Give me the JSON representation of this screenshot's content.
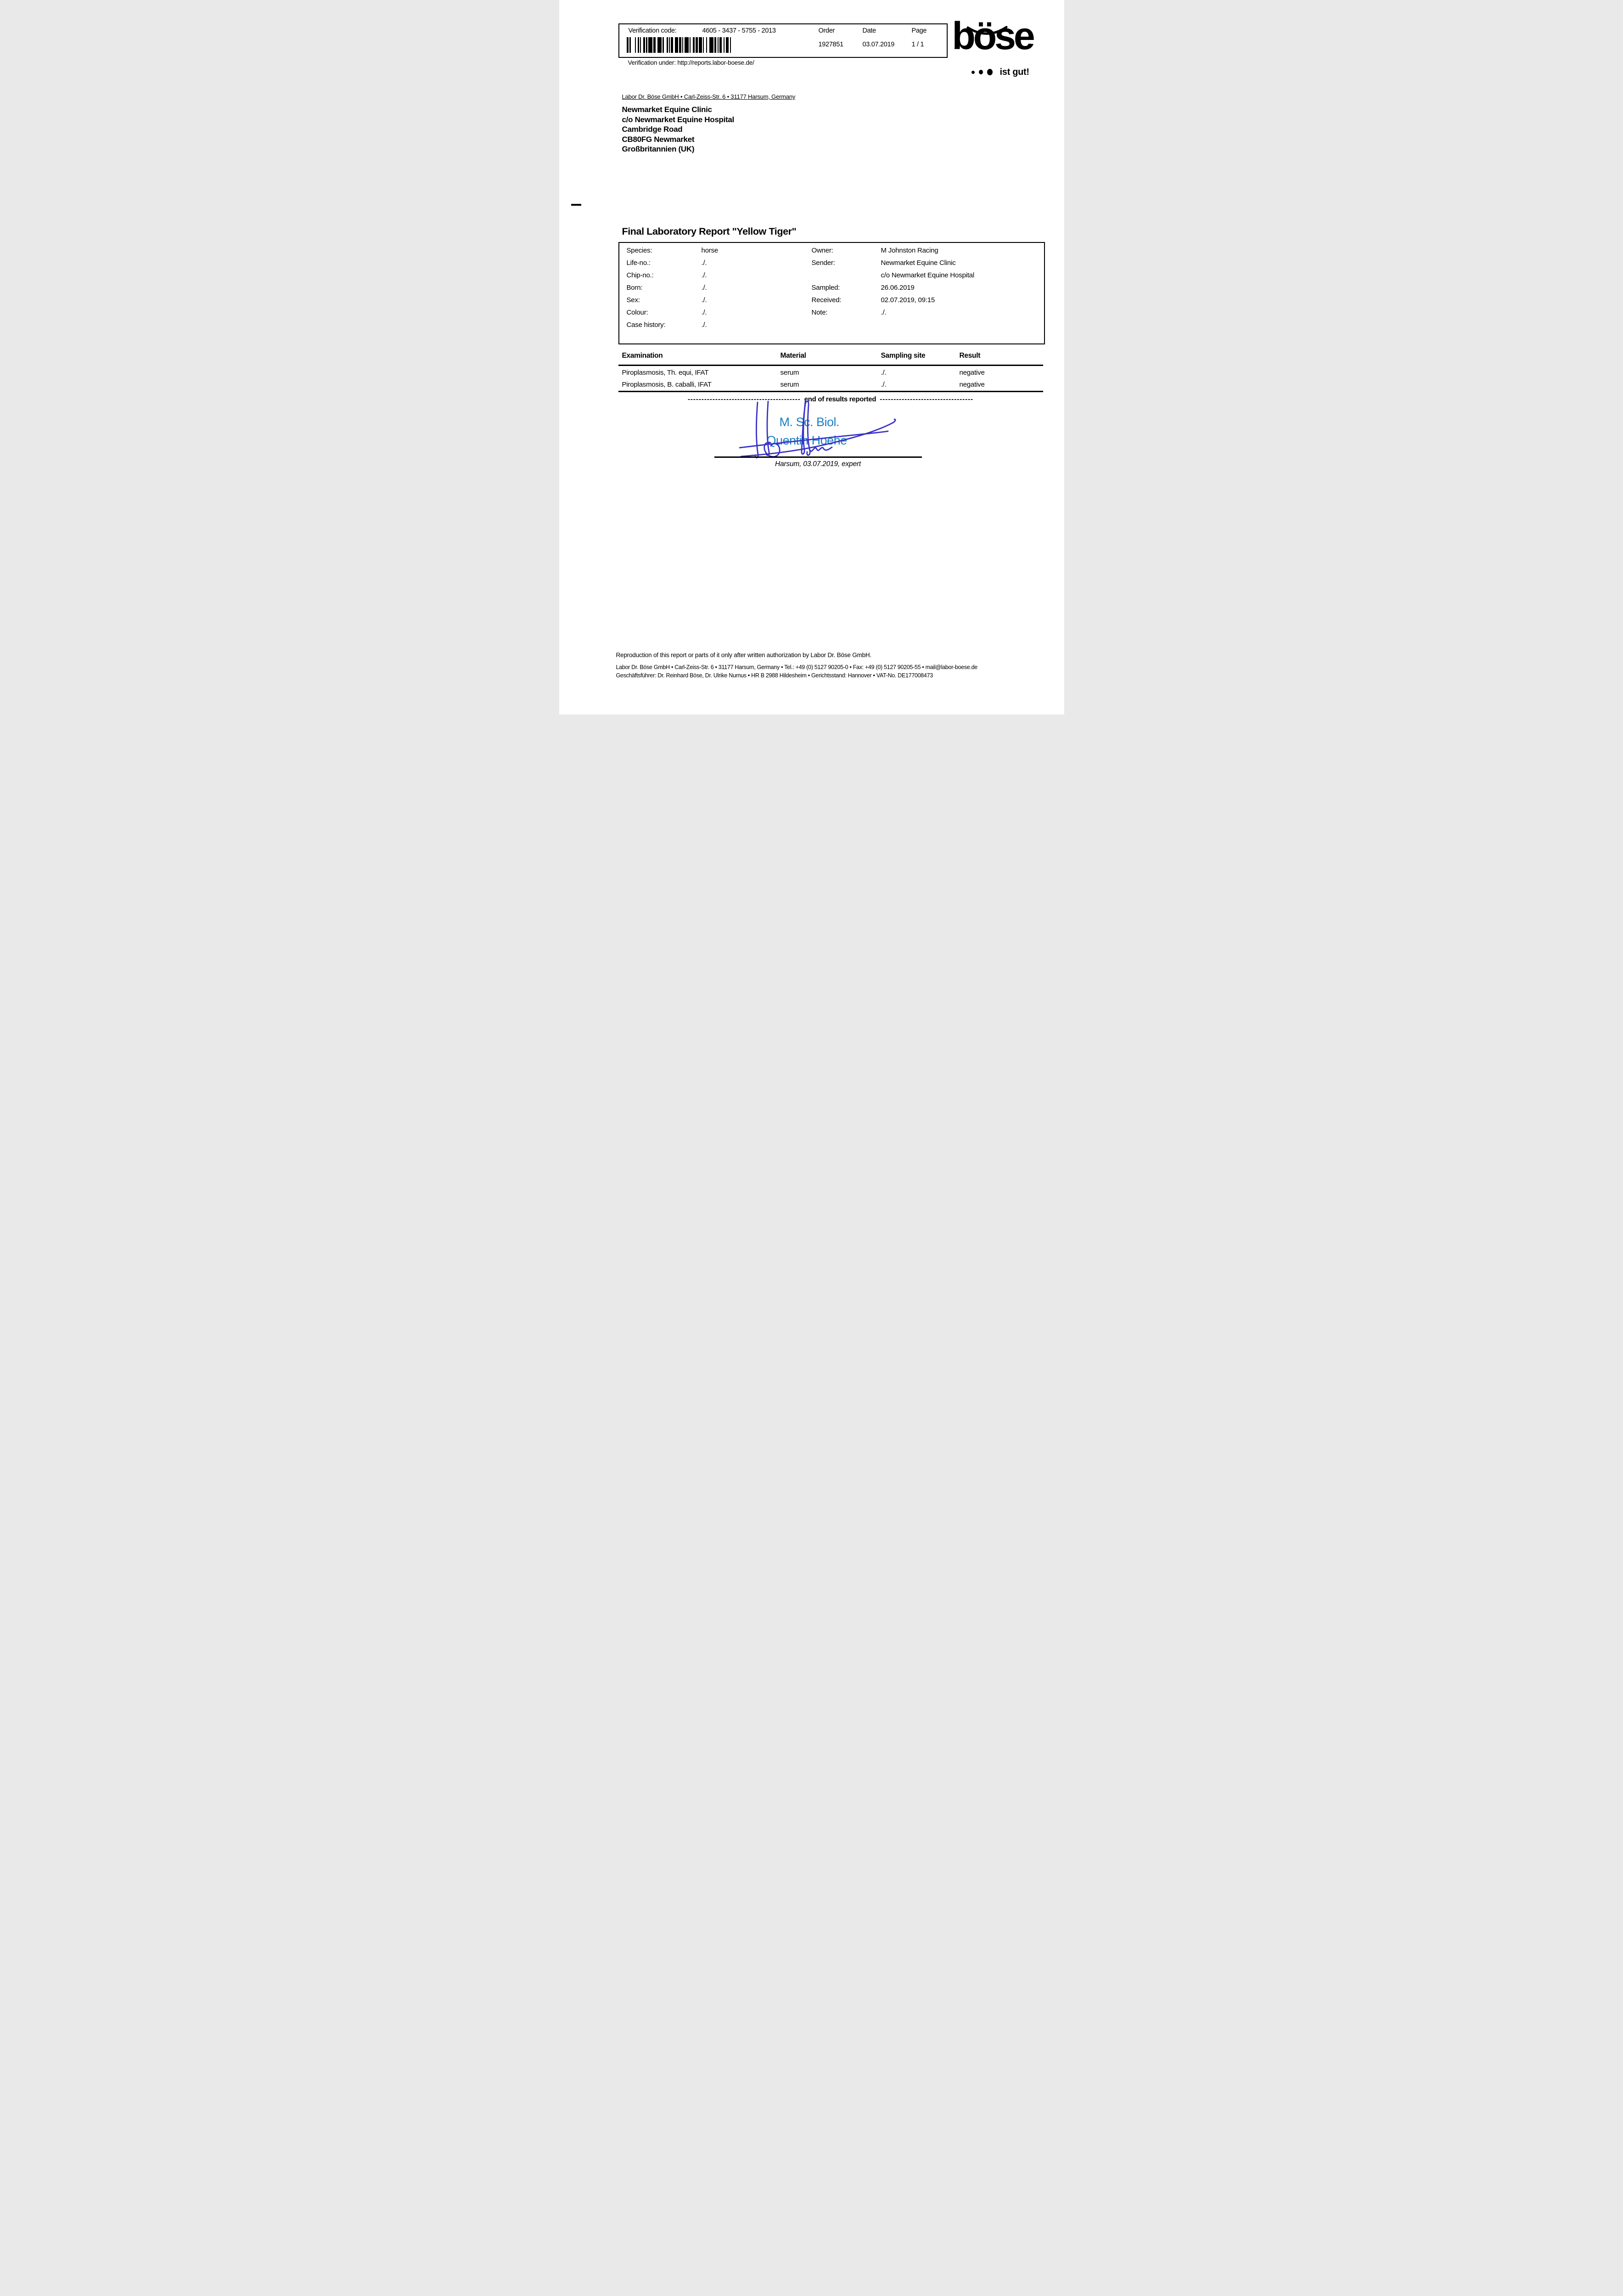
{
  "verification": {
    "code_label": "Verification code:",
    "code": "4605 - 3437 - 5755 - 2013",
    "order_label": "Order",
    "order_value": "1927851",
    "date_label": "Date",
    "date_value": "03.07.2019",
    "page_label": "Page",
    "page_value": "1 / 1",
    "under_line": "Verification under: http://reports.labor-boese.de/",
    "barcode_pattern": "21141211122111412241131111223121114112212131121241211122113112"
  },
  "logo": {
    "wordmark": "böse",
    "dots": "•••",
    "tagline": "ist gut!"
  },
  "recipient": {
    "sender_line": "Labor Dr. Böse GmbH • Carl-Zeiss-Str. 6 • 31177 Harsum, Germany",
    "address": [
      "Newmarket Equine Clinic",
      "c/o Newmarket Equine Hospital",
      "Cambridge Road",
      "CB80FG Newmarket",
      "Großbritannien (UK)"
    ]
  },
  "title": "Final Laboratory Report \"Yellow Tiger\"",
  "patient": {
    "left": [
      {
        "label": "Species:",
        "value": "horse"
      },
      {
        "label": "Life-no.:",
        "value": "./."
      },
      {
        "label": "Chip-no.:",
        "value": "./."
      },
      {
        "label": "Born:",
        "value": "./."
      },
      {
        "label": "Sex:",
        "value": "./."
      },
      {
        "label": "Colour:",
        "value": "./."
      },
      {
        "label": "Case history:",
        "value": "./."
      }
    ],
    "right": [
      {
        "label": "Owner:",
        "value": "M Johnston Racing"
      },
      {
        "label": "Sender:",
        "value": "Newmarket Equine Clinic"
      },
      {
        "label": "",
        "value": "c/o Newmarket Equine Hospital"
      },
      {
        "label": "Sampled:",
        "value": "26.06.2019"
      },
      {
        "label": "Received:",
        "value": "02.07.2019, 09:15"
      },
      {
        "label": "Note:",
        "value": "./."
      }
    ]
  },
  "results": {
    "headers": [
      "Examination",
      "Material",
      "Sampling site",
      "Result"
    ],
    "rows": [
      {
        "examination": "Piroplasmosis, Th. equi, IFAT",
        "material": "serum",
        "sampling_site": "./.",
        "result": "negative"
      },
      {
        "examination": "Piroplasmosis, B. caballi, IFAT",
        "material": "serum",
        "sampling_site": "./.",
        "result": "negative"
      }
    ],
    "end_left_dashes": "-----------------------------------------",
    "end_label": "end of results reported",
    "end_right_dashes": "----------------------------------"
  },
  "signature": {
    "degree": "M. Sc. Biol.",
    "name": "Quentin Hoehe",
    "dateline": "Harsum, 03.07.2019, expert",
    "typed_color": "#1b7fc3",
    "ink_color": "#3730c8"
  },
  "footer": {
    "line1": "Reproduction of this report or parts of it only after written authorization by Labor Dr. Böse GmbH.",
    "line2": "Labor Dr. Böse GmbH • Carl-Zeiss-Str. 6 • 31177 Harsum, Germany • Tel.: +49 (0) 5127 90205-0 • Fax: +49 (0) 5127 90205-55 • mail@labor-boese.de",
    "line3": "Geschäftsführer: Dr. Reinhard Böse, Dr. Ulrike Nurnus • HR B 2988 Hildesheim • Gerichtsstand: Hannover • VAT-No. DE177008473"
  }
}
